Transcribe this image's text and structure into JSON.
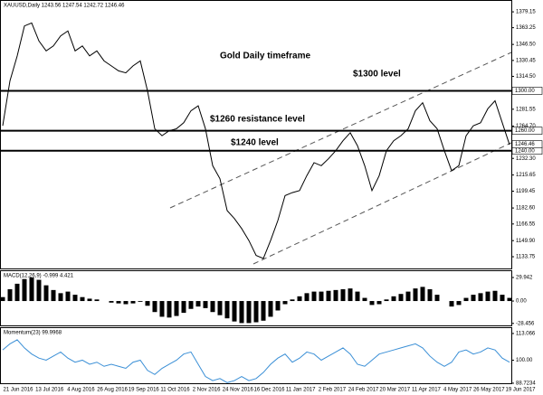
{
  "chart_data": {
    "type": "line",
    "title": "XAUUSD,Daily 1243.56 1247.54 1242.72 1246.46",
    "annotations": [
      "Gold Daily timeframe",
      "$1300 level",
      "$1260 resistance level",
      "$1240 level"
    ],
    "date_labels": [
      "21 Jun 2016",
      "13 Jul 2016",
      "4 Aug 2016",
      "26 Aug 2016",
      "19 Sep 2016",
      "11 Oct 2016",
      "2 Nov 2016",
      "24 Nov 2016",
      "16 Dec 2016",
      "11 Jan 2017",
      "2 Feb 2017",
      "24 Feb 2017",
      "20 Mar 2017",
      "11 Apr 2017",
      "4 May 2017",
      "26 May 2017",
      "19 Jun 2017"
    ],
    "series": [
      {
        "name": "XAUUSD",
        "color": "#000000",
        "values": [
          1265,
          1310,
          1335,
          1365,
          1368,
          1350,
          1340,
          1345,
          1355,
          1360,
          1340,
          1345,
          1335,
          1340,
          1330,
          1325,
          1320,
          1318,
          1325,
          1330,
          1300,
          1262,
          1255,
          1260,
          1262,
          1268,
          1280,
          1285,
          1262,
          1225,
          1212,
          1180,
          1172,
          1162,
          1150,
          1135,
          1132,
          1150,
          1170,
          1195,
          1198,
          1200,
          1215,
          1228,
          1225,
          1232,
          1240,
          1250,
          1258,
          1245,
          1225,
          1200,
          1215,
          1240,
          1250,
          1255,
          1262,
          1280,
          1288,
          1270,
          1262,
          1240,
          1220,
          1225,
          1255,
          1265,
          1268,
          1282,
          1290,
          1268,
          1246
        ]
      }
    ],
    "ylim": [
      1122,
      1391
    ],
    "yticks": [
      1379.15,
      1363.25,
      {
        "value": 1346.5,
        "label": "1346.50"
      },
      1330.45,
      {
        "value": 1314.5,
        "label": "1314.50"
      },
      {
        "value": 1297.6,
        "label": "1297.60"
      },
      1281.55,
      {
        "value": 1264.7,
        "label": "1264.70"
      },
      {
        "value": 1232.3,
        "label": "1232.30"
      },
      1215.65,
      1199.45,
      {
        "value": 1182.6,
        "label": "1182.60"
      },
      1166.55,
      {
        "value": 1149.9,
        "label": "1149.90"
      },
      1133.75
    ],
    "levels": [
      {
        "value": 1300,
        "label": "1300.00"
      },
      {
        "value": 1260,
        "label": "1260.00"
      },
      {
        "value": 1240,
        "label": "1240.00"
      }
    ],
    "last_price": {
      "value": 1246.46,
      "label": "1246.46"
    },
    "macd": {
      "title": "MACD(12,26,9) -0.999 4.421",
      "color": "#000000",
      "values": [
        5,
        15,
        22,
        28,
        30,
        27,
        20,
        14,
        10,
        12,
        8,
        5,
        3,
        2,
        0,
        -2,
        -3,
        -4,
        -3,
        -1,
        -6,
        -14,
        -20,
        -21,
        -19,
        -15,
        -10,
        -7,
        -9,
        -14,
        -18,
        -22,
        -26,
        -28,
        -28,
        -27,
        -25,
        -20,
        -12,
        -4,
        2,
        6,
        10,
        12,
        12,
        13,
        14,
        15,
        16,
        12,
        4,
        -5,
        -4,
        2,
        6,
        9,
        12,
        16,
        18,
        15,
        8,
        0,
        -7,
        -5,
        4,
        8,
        10,
        12,
        13,
        8,
        4
      ],
      "ylim": [
        -31,
        38
      ],
      "yticks": [
        29.942,
        {
          "value": 0,
          "label": "0.00"
        },
        -28.456
      ]
    },
    "momentum": {
      "title": "Momentum(23) 99.9968",
      "color": "#3a8fd6",
      "values": [
        105,
        108,
        110,
        106,
        103,
        101,
        100,
        102,
        104,
        101,
        99,
        100,
        98,
        99,
        97,
        98,
        97,
        96,
        99,
        100,
        95,
        93,
        96,
        98,
        100,
        103,
        104,
        98,
        92,
        90,
        91,
        89,
        90,
        92,
        90,
        91,
        94,
        98,
        101,
        103,
        99,
        101,
        104,
        103,
        100,
        102,
        104,
        106,
        103,
        98,
        97,
        100,
        103,
        104,
        105,
        106,
        107,
        108,
        106,
        102,
        99,
        97,
        99,
        104,
        105,
        103,
        104,
        106,
        105,
        101,
        99
      ],
      "ylim": [
        88.7,
        115.7
      ],
      "yticks": [
        113.066,
        {
          "value": 100,
          "label": "100.00"
        },
        88.7234
      ]
    }
  }
}
